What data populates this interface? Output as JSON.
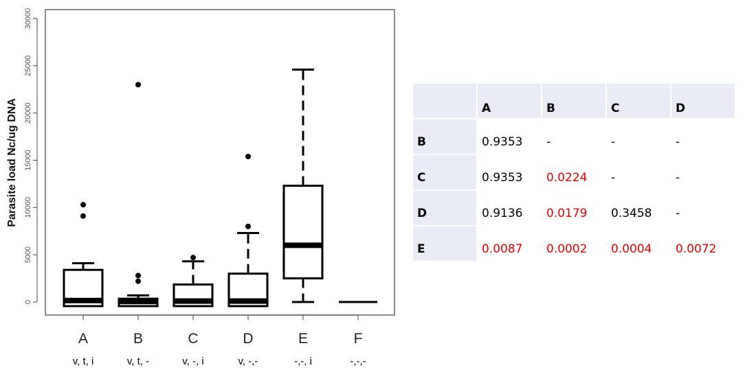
{
  "chart_data": {
    "type": "box",
    "ylabel": "Parasite load Nc/ug DNA",
    "ylim": [
      0,
      30000
    ],
    "yticks": [
      0,
      5000,
      10000,
      15000,
      20000,
      25000,
      30000
    ],
    "categories": [
      "A",
      "B",
      "C",
      "D",
      "E",
      "F"
    ],
    "sublabels": [
      "v, t, i",
      "v, t, -",
      "v, -, i",
      "v, -,-",
      "-,-, i",
      "-,-,-"
    ],
    "boxes": [
      {
        "name": "A",
        "min": 0,
        "q1": 0,
        "median": 150,
        "q3": 3400,
        "max": 4100,
        "outliers": [
          9100,
          10300
        ]
      },
      {
        "name": "B",
        "min": 0,
        "q1": 0,
        "median": 50,
        "q3": 350,
        "max": 700,
        "outliers": [
          2200,
          2800,
          23000
        ]
      },
      {
        "name": "C",
        "min": 0,
        "q1": 0,
        "median": 100,
        "q3": 1850,
        "max": 4300,
        "outliers": [
          4700
        ]
      },
      {
        "name": "D",
        "min": 0,
        "q1": 0,
        "median": 100,
        "q3": 3000,
        "max": 7300,
        "outliers": [
          8000,
          15400
        ]
      },
      {
        "name": "E",
        "min": 0,
        "q1": 2500,
        "median": 6000,
        "q3": 12300,
        "max": 24600,
        "outliers": []
      },
      {
        "name": "F",
        "min": 0,
        "q1": 0,
        "median": 0,
        "q3": 0,
        "max": 0,
        "outliers": []
      }
    ]
  },
  "pvalue_table": {
    "col_headers": [
      "",
      "A",
      "B",
      "C",
      "D"
    ],
    "rows": [
      {
        "label": "B",
        "cells": [
          {
            "v": "0.9353",
            "sig": false
          },
          {
            "v": "-",
            "sig": false
          },
          {
            "v": "-",
            "sig": false
          },
          {
            "v": "-",
            "sig": false
          }
        ]
      },
      {
        "label": "C",
        "cells": [
          {
            "v": "0.9353",
            "sig": false
          },
          {
            "v": "0.0224",
            "sig": true
          },
          {
            "v": "-",
            "sig": false
          },
          {
            "v": "-",
            "sig": false
          }
        ]
      },
      {
        "label": "D",
        "cells": [
          {
            "v": "0.9136",
            "sig": false
          },
          {
            "v": "0.0179",
            "sig": true
          },
          {
            "v": "0.3458",
            "sig": false
          },
          {
            "v": "-",
            "sig": false
          }
        ]
      },
      {
        "label": "E",
        "cells": [
          {
            "v": "0.0087",
            "sig": true
          },
          {
            "v": "0.0002",
            "sig": true
          },
          {
            "v": "0.0004",
            "sig": true
          },
          {
            "v": "0.0072",
            "sig": true
          }
        ]
      }
    ],
    "colors": {
      "significant": "#ee0000",
      "normal": "#000000",
      "header_bg": "#e9ebf5"
    }
  }
}
